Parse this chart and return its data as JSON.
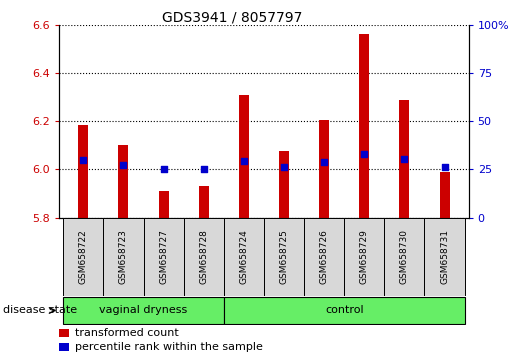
{
  "title": "GDS3941 / 8057797",
  "samples": [
    "GSM658722",
    "GSM658723",
    "GSM658727",
    "GSM658728",
    "GSM658724",
    "GSM658725",
    "GSM658726",
    "GSM658729",
    "GSM658730",
    "GSM658731"
  ],
  "bar_values": [
    6.185,
    6.1,
    5.91,
    5.93,
    6.31,
    6.075,
    6.205,
    6.56,
    6.29,
    5.99
  ],
  "percentile_values": [
    6.04,
    6.02,
    6.0,
    6.0,
    6.035,
    6.01,
    6.03,
    6.065,
    6.045,
    6.01
  ],
  "ylim_left": [
    5.8,
    6.6
  ],
  "ylim_right": [
    0,
    100
  ],
  "yticks_left": [
    5.8,
    6.0,
    6.2,
    6.4,
    6.6
  ],
  "yticks_right": [
    0,
    25,
    50,
    75,
    100
  ],
  "bar_color": "#cc0000",
  "percentile_color": "#0000cc",
  "bar_bottom": 5.8,
  "groups": [
    {
      "label": "vaginal dryness",
      "start": 0,
      "end": 4
    },
    {
      "label": "control",
      "start": 4,
      "end": 10
    }
  ],
  "group_color": "#66ee66",
  "disease_state_label": "disease state",
  "legend_entries": [
    "transformed count",
    "percentile rank within the sample"
  ],
  "background_color": "#ffffff",
  "tick_label_color_left": "#cc0000",
  "tick_label_color_right": "#0000cc",
  "bar_width": 0.25,
  "cell_color": "#d8d8d8"
}
